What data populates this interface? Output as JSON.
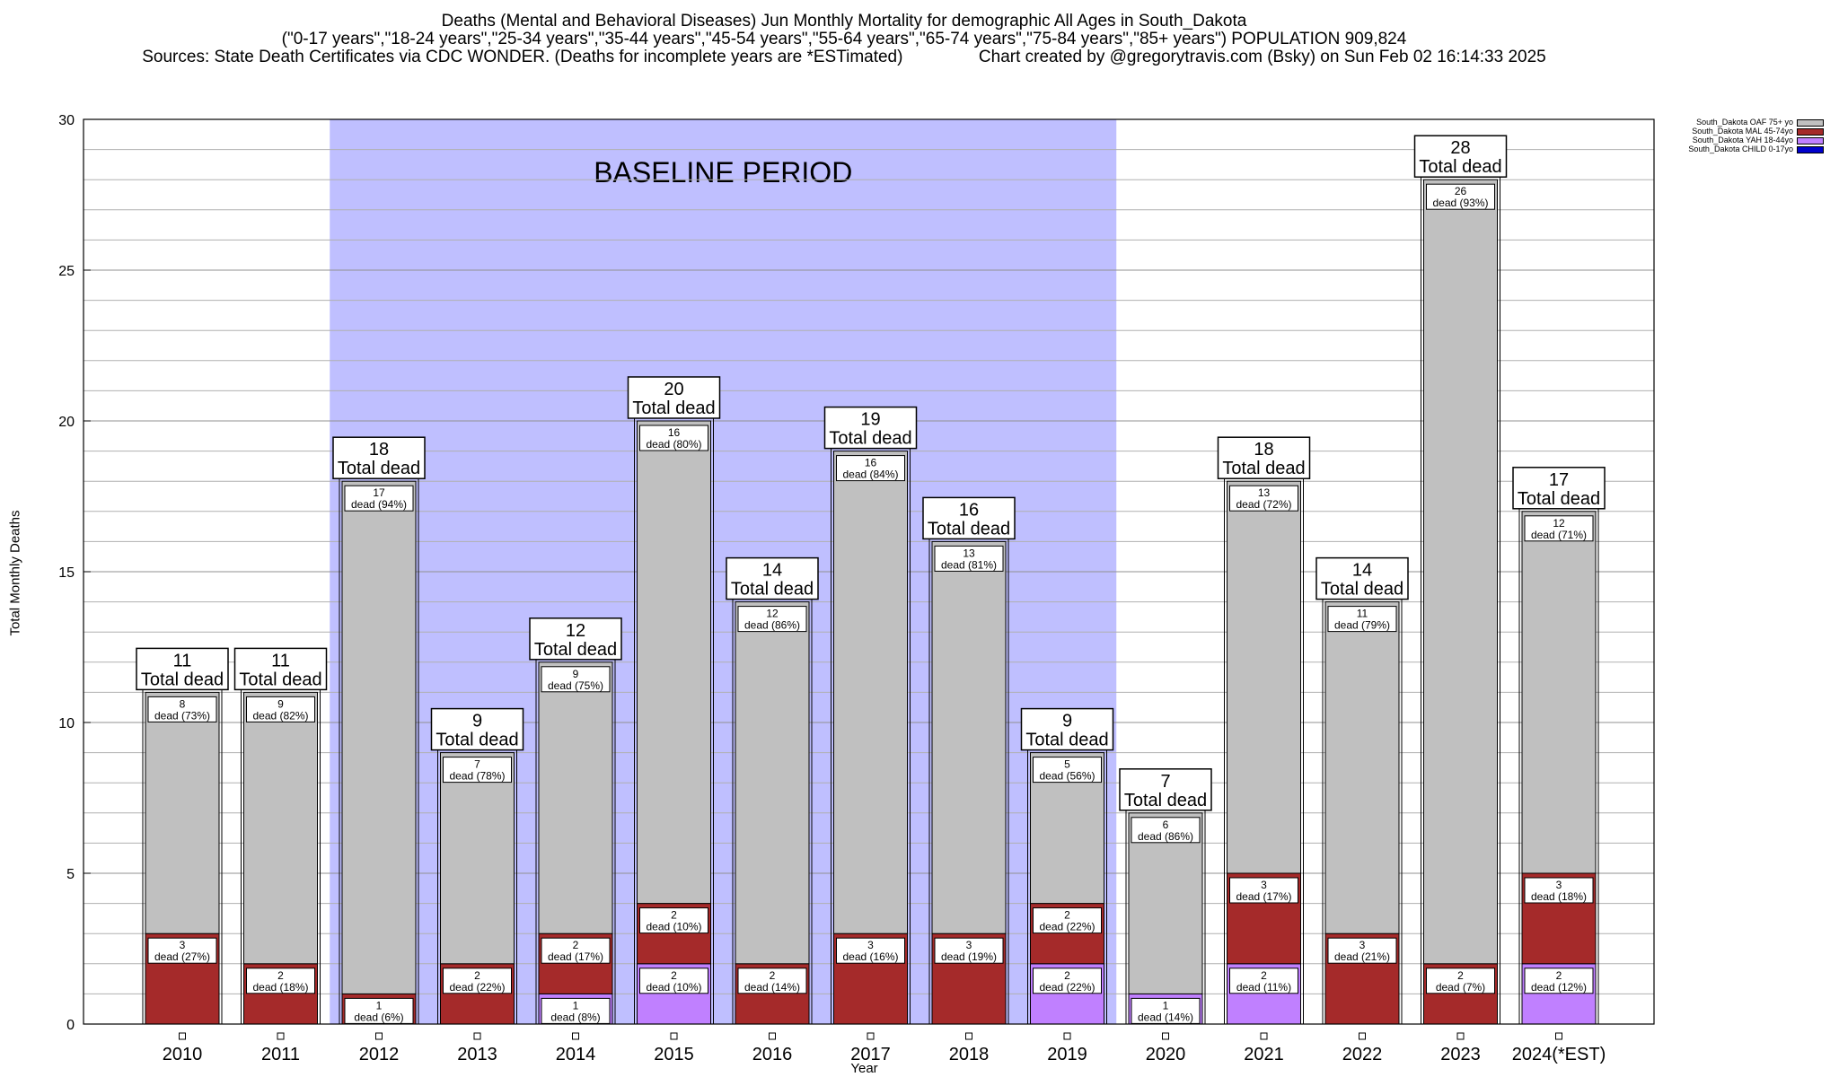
{
  "title": {
    "line1": "Deaths (Mental and Behavioral Diseases) Jun Monthly Mortality for demographic All Ages in South_Dakota",
    "line2": "(\"0-17 years\",\"18-24 years\",\"25-34 years\",\"35-44 years\",\"45-54 years\",\"55-64 years\",\"65-74 years\",\"75-84 years\",\"85+ years\") POPULATION 909,824",
    "line3": "Sources: State Death Certificates via CDC WONDER. (Deaths for incomplete years are *ESTimated)                Chart created by @gregorytravis.com (Bsky) on Sun Feb 02 16:14:33 2025"
  },
  "chart_data": {
    "type": "bar",
    "stacked": true,
    "xlabel": "Year",
    "ylabel": "Total Monthly Deaths",
    "ylim": [
      0,
      30
    ],
    "yticks": [
      0,
      5,
      10,
      15,
      20,
      25,
      30
    ],
    "grid": true,
    "legend_position": "top-right (outside plot)",
    "annotation": "BASELINE PERIOD",
    "baseline_period": [
      "2012",
      "2019"
    ],
    "total_label_suffix": "Total dead",
    "segment_label_prefix": "dead",
    "categories": [
      "2010",
      "2011",
      "2012",
      "2013",
      "2014",
      "2015",
      "2016",
      "2017",
      "2018",
      "2019",
      "2020",
      "2021",
      "2022",
      "2023",
      "2024(*EST)"
    ],
    "totals": [
      11,
      11,
      18,
      9,
      12,
      20,
      14,
      19,
      16,
      9,
      7,
      18,
      14,
      28,
      17
    ],
    "series": [
      {
        "name": "South_Dakota CHILD 0-17yo",
        "color": "#0000cc",
        "values": [
          0,
          0,
          0,
          0,
          0,
          0,
          0,
          0,
          0,
          0,
          0,
          0,
          0,
          0,
          0
        ],
        "pct": []
      },
      {
        "name": "South_Dakota YAH 18-44yo",
        "color": "#c080ff",
        "values": [
          0,
          0,
          0,
          0,
          1,
          2,
          0,
          0,
          0,
          2,
          1,
          2,
          0,
          0,
          2
        ],
        "pct": [
          null,
          null,
          null,
          null,
          "8%",
          "10%",
          null,
          null,
          null,
          "22%",
          "14%",
          "11%",
          null,
          null,
          "12%"
        ]
      },
      {
        "name": "South_Dakota MAL 45-74yo",
        "color": "#a52a2a",
        "values": [
          3,
          2,
          1,
          2,
          2,
          2,
          2,
          3,
          3,
          2,
          0,
          3,
          3,
          2,
          3
        ],
        "pct": [
          "27%",
          "18%",
          "6%",
          "22%",
          "17%",
          "10%",
          "14%",
          "16%",
          "19%",
          "22%",
          null,
          "17%",
          "21%",
          "7%",
          "18%"
        ]
      },
      {
        "name": "South_Dakota OAF 75+ yo",
        "color": "#c0c0c0",
        "values": [
          8,
          9,
          17,
          7,
          9,
          16,
          12,
          16,
          13,
          5,
          6,
          13,
          11,
          26,
          12
        ],
        "pct": [
          "73%",
          "82%",
          "94%",
          "78%",
          "75%",
          "80%",
          "86%",
          "84%",
          "81%",
          "56%",
          "86%",
          "72%",
          "79%",
          "93%",
          "71%"
        ]
      }
    ],
    "colors": {
      "baseline_band": "#bfbfff",
      "grid": "#b0b0b0"
    }
  }
}
